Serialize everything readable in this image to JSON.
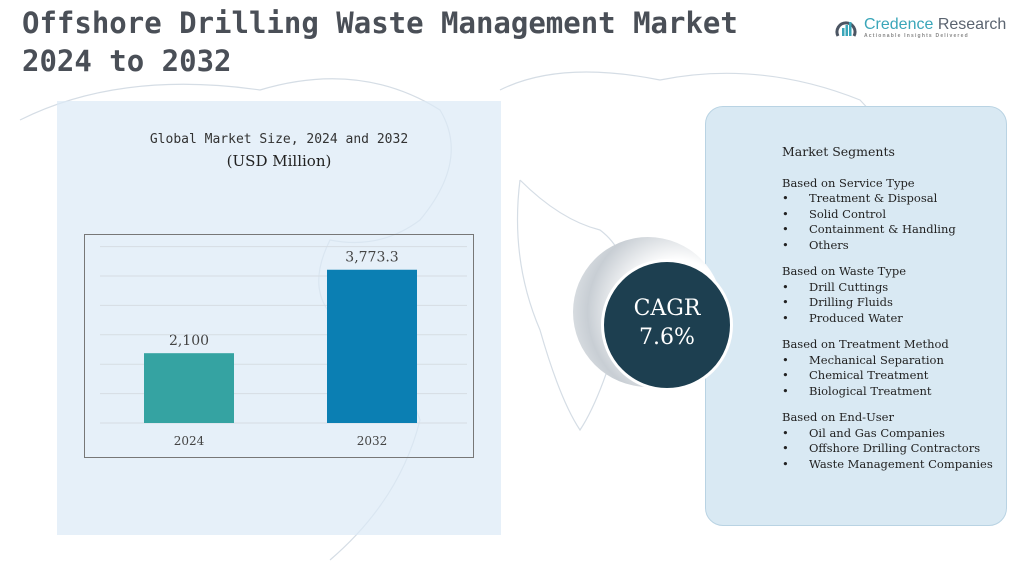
{
  "header": {
    "title_line1": "Offshore Drilling Waste Management Market",
    "title_line2": "2024 to 2032"
  },
  "logo": {
    "name_part1": "Credence",
    "name_part2": " Research",
    "tagline": "Actionable Insights Delivered"
  },
  "chart_data": {
    "type": "bar",
    "title": "Global Market Size, 2024 and 2032",
    "subtitle": "(USD Million)",
    "categories": [
      "2024",
      "2032"
    ],
    "values": [
      2100,
      3773.3
    ],
    "value_labels": [
      "2,100",
      "3,773.3"
    ],
    "ylim": [
      700,
      4430
    ],
    "grid": true,
    "colors": [
      "#35a3a2",
      "#0b7fb3"
    ]
  },
  "cagr": {
    "label": "CAGR",
    "value": "7.6%"
  },
  "segments": {
    "title": "Market Segments",
    "groups": [
      {
        "heading": "Based on Service Type",
        "items": [
          "Treatment & Disposal",
          "Solid Control",
          "Containment & Handling",
          "Others"
        ]
      },
      {
        "heading": "Based on Waste Type",
        "items": [
          "Drill Cuttings",
          "Drilling Fluids",
          "Produced Water"
        ]
      },
      {
        "heading": "Based on Treatment Method",
        "items": [
          "Mechanical Separation",
          "Chemical Treatment",
          "Biological Treatment"
        ]
      },
      {
        "heading": "Based on End-User",
        "items": [
          "Oil and Gas Companies",
          "Offshore Drilling Contractors",
          "Waste Management Companies"
        ]
      }
    ]
  }
}
